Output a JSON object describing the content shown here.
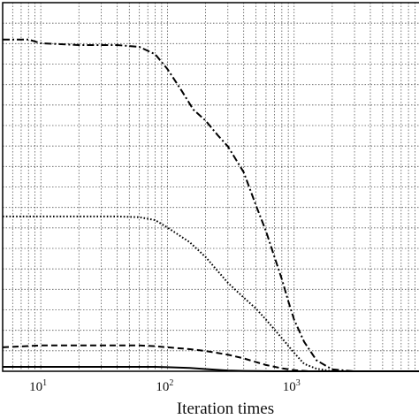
{
  "chart_data": {
    "type": "line",
    "xlabel": "Iteration times",
    "ylabel": "",
    "x_scale": "log",
    "xlim": [
      5,
      10000
    ],
    "ylim": [
      0,
      1
    ],
    "grid": true,
    "x_tick_labels": [
      {
        "base": "10",
        "exp": "1",
        "value": 10
      },
      {
        "base": "10",
        "exp": "2",
        "value": 100
      },
      {
        "base": "10",
        "exp": "3",
        "value": 1000
      }
    ],
    "series": [
      {
        "style": "dashdot",
        "x": [
          5,
          8,
          10,
          20,
          40,
          60,
          80,
          100,
          130,
          160,
          200,
          250,
          300,
          400,
          500,
          600,
          700,
          800,
          900,
          1000,
          1200,
          1500,
          2000,
          3000,
          5000,
          10000
        ],
        "y": [
          0.9,
          0.9,
          0.89,
          0.885,
          0.885,
          0.88,
          0.86,
          0.82,
          0.76,
          0.71,
          0.68,
          0.64,
          0.61,
          0.54,
          0.45,
          0.38,
          0.31,
          0.25,
          0.19,
          0.14,
          0.08,
          0.03,
          0.005,
          0,
          0,
          0
        ]
      },
      {
        "style": "dotted",
        "x": [
          5,
          10,
          20,
          40,
          60,
          80,
          100,
          150,
          200,
          300,
          400,
          500,
          600,
          800,
          1000,
          1200,
          1500,
          2000,
          3000,
          5000,
          10000
        ],
        "y": [
          0.42,
          0.42,
          0.42,
          0.42,
          0.418,
          0.41,
          0.39,
          0.35,
          0.31,
          0.24,
          0.2,
          0.17,
          0.14,
          0.09,
          0.05,
          0.02,
          0.007,
          0,
          0,
          0,
          0
        ]
      },
      {
        "style": "dashed",
        "x": [
          5,
          10,
          20,
          40,
          60,
          80,
          100,
          150,
          200,
          300,
          400,
          500,
          600,
          800,
          1000,
          1300,
          2000,
          3000,
          5000,
          10000
        ],
        "y": [
          0.065,
          0.07,
          0.07,
          0.07,
          0.07,
          0.068,
          0.065,
          0.06,
          0.055,
          0.045,
          0.035,
          0.025,
          0.017,
          0.008,
          0.003,
          0,
          0,
          0,
          0,
          0
        ]
      },
      {
        "style": "solid",
        "x": [
          5,
          10,
          20,
          40,
          60,
          80,
          100,
          150,
          200,
          300,
          400,
          500,
          700,
          1000,
          2000,
          5000,
          10000
        ],
        "y": [
          0.012,
          0.012,
          0.012,
          0.012,
          0.012,
          0.012,
          0.011,
          0.009,
          0.006,
          0.002,
          0.001,
          0.0005,
          0,
          0,
          0,
          0,
          0
        ]
      }
    ]
  }
}
